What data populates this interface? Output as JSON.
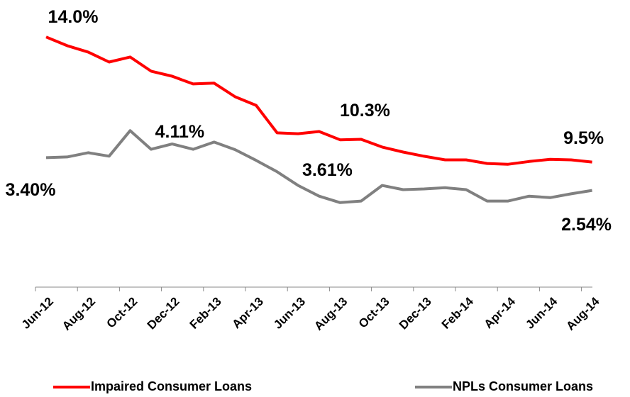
{
  "chart_data": {
    "type": "line",
    "categories": [
      "Jun-12",
      null,
      "Aug-12",
      null,
      "Oct-12",
      null,
      "Dec-12",
      null,
      "Feb-13",
      null,
      "Apr-13",
      null,
      "Jun-13",
      null,
      "Aug-13",
      null,
      "Oct-13",
      null,
      "Dec-13",
      null,
      "Feb-14",
      null,
      "Apr-14",
      null,
      "Jun-14",
      null,
      "Aug-14"
    ],
    "series": [
      {
        "name": "Impaired Consumer Loans",
        "color": "#ff0000",
        "values": [
          14.0,
          13.69,
          13.46,
          13.1,
          13.28,
          12.77,
          12.59,
          12.31,
          12.34,
          11.85,
          11.54,
          10.55,
          10.52,
          10.6,
          10.3,
          10.32,
          10.04,
          9.86,
          9.71,
          9.58,
          9.58,
          9.45,
          9.42,
          9.52,
          9.6,
          9.58,
          9.5
        ],
        "value_labels": [
          "14.0%",
          null,
          null,
          null,
          null,
          null,
          null,
          null,
          null,
          null,
          null,
          null,
          null,
          null,
          "10.3%",
          null,
          null,
          null,
          null,
          null,
          null,
          null,
          null,
          null,
          null,
          null,
          "9.5%"
        ]
      },
      {
        "name": "NPLs Consumer Loans",
        "color": "#808080",
        "axis": "y2",
        "values": [
          3.4,
          3.42,
          3.53,
          3.44,
          4.11,
          3.62,
          3.76,
          3.62,
          3.81,
          3.61,
          3.33,
          3.03,
          2.67,
          2.39,
          2.22,
          2.26,
          2.67,
          2.56,
          2.58,
          2.61,
          2.56,
          2.26,
          2.26,
          2.39,
          2.35,
          2.45,
          2.54
        ],
        "value_labels": [
          "3.40%",
          null,
          null,
          null,
          "4.11%",
          null,
          null,
          null,
          null,
          "3.61%",
          null,
          null,
          null,
          null,
          null,
          null,
          null,
          null,
          null,
          null,
          null,
          null,
          null,
          null,
          null,
          null,
          "2.54%"
        ]
      }
    ],
    "ylim": [
      5,
      15
    ],
    "y2lim": [
      0,
      7.3
    ],
    "legend": "bottom"
  }
}
